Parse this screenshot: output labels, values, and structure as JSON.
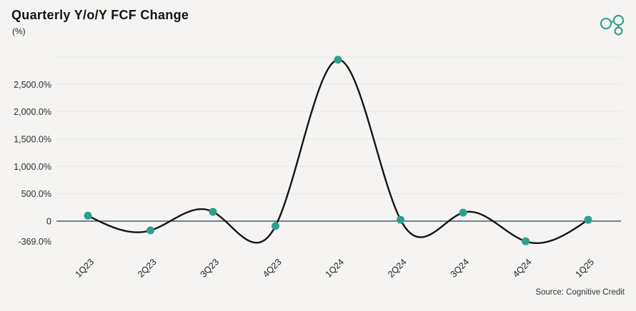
{
  "header": {
    "title": "Quarterly Y/o/Y FCF Change",
    "subtitle": "(%)"
  },
  "footer": {
    "source": "Source: Cognitive Credit"
  },
  "palette": {
    "accent": "#2b9f8d",
    "line": "#141414",
    "zero_line": "#1f3d52",
    "grid": "#e8e7e4",
    "background": "#f5f4f2",
    "tick_text": "#2d2d2d",
    "xlabel_text": "#202020"
  },
  "chart_data": {
    "type": "line",
    "title": "Quarterly Y/o/Y FCF Change",
    "unit": "(%)",
    "series_name": "Quarterly Y/o/Y FCF Change (%)",
    "categories": [
      "1Q23",
      "2Q23",
      "3Q23",
      "4Q23",
      "1Q24",
      "2Q24",
      "3Q24",
      "4Q24",
      "1Q25"
    ],
    "values": [
      100,
      -170,
      170,
      -90,
      2950,
      25,
      155,
      -369,
      25
    ],
    "ytick_labels": [
      "2,500.0%",
      "2,000.0%",
      "1,500.0%",
      "1,000.0%",
      "500.0%",
      "0",
      "-369.0%"
    ],
    "ytick_values": [
      2500,
      2000,
      1500,
      1000,
      500,
      0,
      -369
    ],
    "gridline_values": [
      3000,
      2500,
      2000,
      1500,
      1000,
      500
    ],
    "ylim": [
      -500,
      3078
    ],
    "xlabel": "",
    "ylabel": "",
    "legend": "none",
    "grid": "horizontal",
    "marker": "circle",
    "smoothing": "cubic-spline",
    "source": "Source: Cognitive Credit"
  }
}
